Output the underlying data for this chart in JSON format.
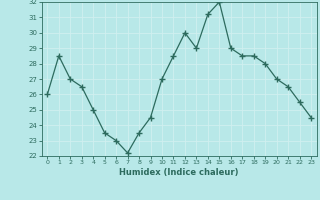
{
  "x": [
    0,
    1,
    2,
    3,
    4,
    5,
    6,
    7,
    8,
    9,
    10,
    11,
    12,
    13,
    14,
    15,
    16,
    17,
    18,
    19,
    20,
    21,
    22,
    23
  ],
  "y": [
    26,
    28.5,
    27,
    26.5,
    25,
    23.5,
    23,
    22.2,
    23.5,
    24.5,
    27,
    28.5,
    30,
    29,
    31.2,
    32,
    29,
    28.5,
    28.5,
    28,
    27,
    26.5,
    25.5,
    24.5
  ],
  "line_color": "#2d6b5e",
  "marker": "+",
  "marker_size": 4,
  "bg_color": "#b8e8e8",
  "grid_color": "#d0f0f0",
  "xlabel": "Humidex (Indice chaleur)",
  "ylim": [
    22,
    32
  ],
  "xlim": [
    -0.5,
    23.5
  ],
  "yticks": [
    22,
    23,
    24,
    25,
    26,
    27,
    28,
    29,
    30,
    31,
    32
  ],
  "xticks": [
    0,
    1,
    2,
    3,
    4,
    5,
    6,
    7,
    8,
    9,
    10,
    11,
    12,
    13,
    14,
    15,
    16,
    17,
    18,
    19,
    20,
    21,
    22,
    23
  ]
}
